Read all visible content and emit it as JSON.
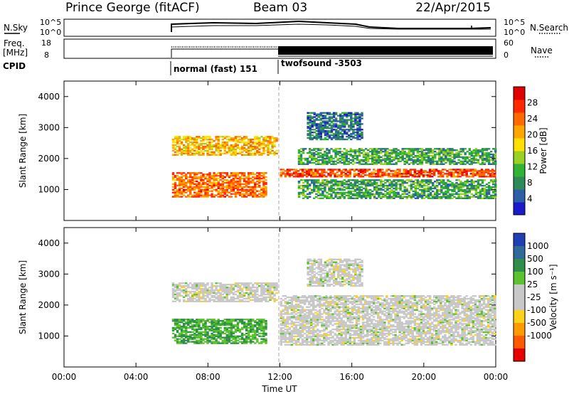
{
  "header": {
    "station": "Prince George (fitACF)",
    "beam": "Beam 03",
    "date": "22/Apr/2015"
  },
  "panels": {
    "nsky": {
      "left_label_1": "N.Sky",
      "left_label_2": "",
      "right_label_1": "N.Search",
      "right_label_2": "",
      "left_ticks": [
        "10^5",
        "10^0"
      ],
      "right_ticks": [
        "10^5",
        "10^0"
      ]
    },
    "freq": {
      "left_label_1": "Freq.",
      "left_label_2": "[MHz]",
      "right_label_1": "Nave",
      "right_label_2": "",
      "left_ticks": [
        "18",
        "8"
      ],
      "right_ticks": [
        "60",
        "0"
      ]
    },
    "cpid": {
      "label": "CPID",
      "segments": [
        {
          "name": "normal (fast) 151",
          "start_hour": 6.0
        },
        {
          "name": "twofsound -3503",
          "start_hour": 12.0
        }
      ]
    }
  },
  "colors": {
    "power_scale": [
      "#1a1acc",
      "#2d5ea8",
      "#2f8a5a",
      "#33b333",
      "#9ad125",
      "#ffe000",
      "#ffa600",
      "#ff6a00",
      "#ff2a00",
      "#e00000"
    ],
    "velocity_scale": [
      "#1f3fb3",
      "#2f6a9a",
      "#2f8f4a",
      "#5cc22f",
      "#c8c8c8",
      "#c8c8c8",
      "#ffd21a",
      "#ff9a00",
      "#ff5a00",
      "#e60000"
    ]
  },
  "chart_data": [
    {
      "type": "heatmap",
      "title": "",
      "xlabel": "",
      "ylabel": "Slant Range [km]",
      "xlim": [
        0,
        24
      ],
      "ylim": [
        0,
        4500
      ],
      "x_ticks": [
        "00:00",
        "04:00",
        "08:00",
        "12:00",
        "16:00",
        "20:00",
        "00:00"
      ],
      "y_ticks": [
        "1000",
        "2000",
        "3000",
        "4000"
      ],
      "colorbar": {
        "label": "Power [dB]",
        "range": [
          0,
          32
        ],
        "ticks": [
          "4",
          "8",
          "12",
          "16",
          "20",
          "24",
          "28"
        ]
      },
      "regions": [
        {
          "t": [
            6.0,
            11.8
          ],
          "range_km": [
            2100,
            2700
          ],
          "power_db": 20
        },
        {
          "t": [
            6.0,
            11.2
          ],
          "range_km": [
            750,
            1550
          ],
          "power_db": 24
        },
        {
          "t": [
            12.0,
            24.0
          ],
          "range_km": [
            1400,
            1650
          ],
          "power_db": 26
        },
        {
          "t": [
            13.0,
            24.0
          ],
          "range_km": [
            700,
            1300
          ],
          "power_db": 10
        },
        {
          "t": [
            13.0,
            24.0
          ],
          "range_km": [
            1800,
            2300
          ],
          "power_db": 10
        },
        {
          "t": [
            13.5,
            16.5
          ],
          "range_km": [
            2600,
            3500
          ],
          "power_db": 6
        }
      ]
    },
    {
      "type": "heatmap",
      "title": "",
      "xlabel": "Time UT",
      "ylabel": "Slant Range [km]",
      "xlim": [
        0,
        24
      ],
      "ylim": [
        0,
        4500
      ],
      "x_ticks": [
        "00:00",
        "04:00",
        "08:00",
        "12:00",
        "16:00",
        "20:00",
        "00:00"
      ],
      "y_ticks": [
        "1000",
        "2000",
        "3000",
        "4000"
      ],
      "colorbar": {
        "label": "Velocity [m s⁻¹]",
        "ticks": [
          "1000",
          "500",
          "100",
          "25",
          "-25",
          "-100",
          "-500",
          "-1000"
        ]
      },
      "regions": [
        {
          "t": [
            6.0,
            11.8
          ],
          "range_km": [
            2100,
            2700
          ],
          "velocity": 0
        },
        {
          "t": [
            6.0,
            11.2
          ],
          "range_km": [
            750,
            1550
          ],
          "velocity": 100
        },
        {
          "t": [
            12.0,
            24.0
          ],
          "range_km": [
            700,
            2300
          ],
          "velocity": 0
        },
        {
          "t": [
            13.5,
            16.5
          ],
          "range_km": [
            2600,
            3500
          ],
          "velocity": 0
        }
      ]
    }
  ]
}
